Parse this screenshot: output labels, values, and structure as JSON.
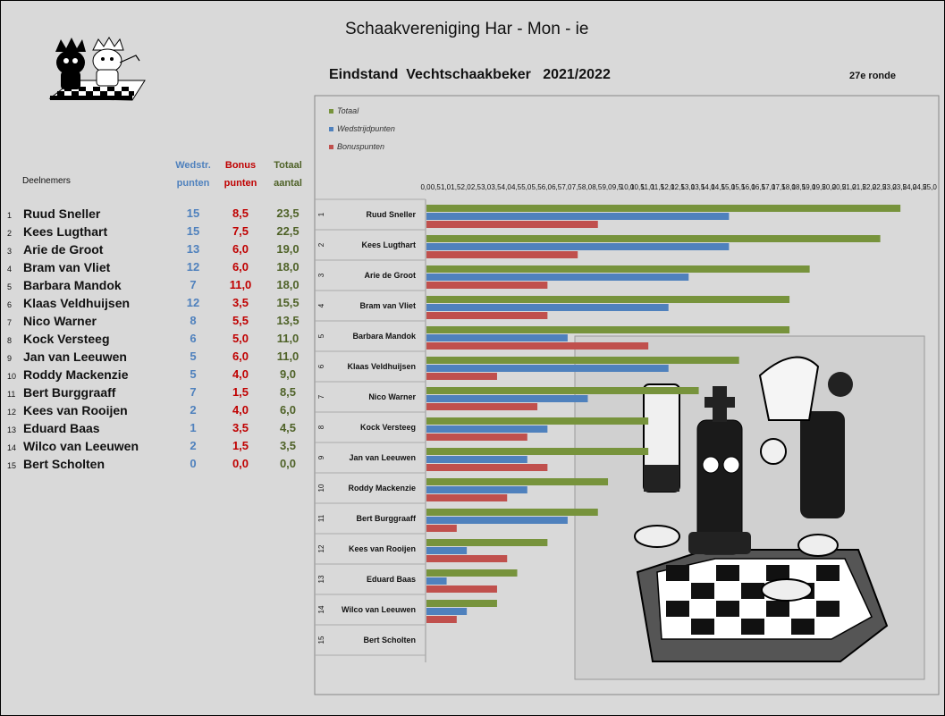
{
  "header": {
    "club_name": "Schaakvereniging Har - Mon - ie",
    "chart_title": "Eindstand  Vechtschaakbeker   2021/2022",
    "round": "27e ronde"
  },
  "table": {
    "participants_label": "Deelnemers",
    "col_wedstr": [
      "Wedstr.",
      "punten"
    ],
    "col_bonus": [
      "Bonus",
      "punten"
    ],
    "col_totaal": [
      "Totaal",
      "aantal"
    ],
    "rows": [
      {
        "rank": "1",
        "name": "Ruud Sneller",
        "wedstr": "15",
        "bonus": "8,5",
        "totaal": "23,5"
      },
      {
        "rank": "2",
        "name": "Kees Lugthart",
        "wedstr": "15",
        "bonus": "7,5",
        "totaal": "22,5"
      },
      {
        "rank": "3",
        "name": "Arie de Groot",
        "wedstr": "13",
        "bonus": "6,0",
        "totaal": "19,0"
      },
      {
        "rank": "4",
        "name": "Bram van Vliet",
        "wedstr": "12",
        "bonus": "6,0",
        "totaal": "18,0"
      },
      {
        "rank": "5",
        "name": "Barbara Mandok",
        "wedstr": "7",
        "bonus": "11,0",
        "totaal": "18,0"
      },
      {
        "rank": "6",
        "name": "Klaas Veldhuijsen",
        "wedstr": "12",
        "bonus": "3,5",
        "totaal": "15,5"
      },
      {
        "rank": "7",
        "name": "Nico Warner",
        "wedstr": "8",
        "bonus": "5,5",
        "totaal": "13,5"
      },
      {
        "rank": "8",
        "name": "Kock Versteeg",
        "wedstr": "6",
        "bonus": "5,0",
        "totaal": "11,0"
      },
      {
        "rank": "9",
        "name": "Jan van Leeuwen",
        "wedstr": "5",
        "bonus": "6,0",
        "totaal": "11,0"
      },
      {
        "rank": "10",
        "name": "Roddy Mackenzie",
        "wedstr": "5",
        "bonus": "4,0",
        "totaal": "9,0"
      },
      {
        "rank": "11",
        "name": "Bert Burggraaff",
        "wedstr": "7",
        "bonus": "1,5",
        "totaal": "8,5"
      },
      {
        "rank": "12",
        "name": "Kees van Rooijen",
        "wedstr": "2",
        "bonus": "4,0",
        "totaal": "6,0"
      },
      {
        "rank": "13",
        "name": "Eduard Baas",
        "wedstr": "1",
        "bonus": "3,5",
        "totaal": "4,5"
      },
      {
        "rank": "14",
        "name": "Wilco van Leeuwen",
        "wedstr": "2",
        "bonus": "1,5",
        "totaal": "3,5"
      },
      {
        "rank": "15",
        "name": "Bert Scholten",
        "wedstr": "0",
        "bonus": "0,0",
        "totaal": "0,0"
      }
    ]
  },
  "colors": {
    "totaal": "#77933c",
    "wedstrijd": "#4f81bd",
    "bonus": "#c0504d",
    "background": "#d9d9d9"
  },
  "chart_data": {
    "type": "bar",
    "orientation": "horizontal",
    "title": "Eindstand  Vechtschaakbeker   2021/2022",
    "legend_position": "top-left",
    "xlim": [
      0,
      25
    ],
    "x_tick_step": 0.5,
    "x_tick_labels": [
      "0,0",
      "0,5",
      "1,0",
      "1,5",
      "2,0",
      "2,5",
      "3,0",
      "3,5",
      "4,0",
      "4,5",
      "5,0",
      "5,5",
      "6,0",
      "6,5",
      "7,0",
      "7,5",
      "8,0",
      "8,5",
      "9,0",
      "9,5",
      "10,0",
      "10,5",
      "11,0",
      "11,5",
      "12,0",
      "12,5",
      "13,0",
      "13,5",
      "14,0",
      "14,5",
      "15,0",
      "15,5",
      "16,0",
      "16,5",
      "17,0",
      "17,5",
      "18,0",
      "18,5",
      "19,0",
      "19,5",
      "20,0",
      "20,5",
      "21,0",
      "21,5",
      "22,0",
      "22,5",
      "23,0",
      "23,5",
      "24,0",
      "24,5",
      "25,0"
    ],
    "category_numbers": [
      "1",
      "2",
      "3",
      "4",
      "5",
      "6",
      "7",
      "8",
      "9",
      "10",
      "11",
      "12",
      "13",
      "14",
      "15"
    ],
    "categories": [
      "Ruud Sneller",
      "Kees Lugthart",
      "Arie de Groot",
      "Bram van Vliet",
      "Barbara Mandok",
      "Klaas Veldhuijsen",
      "Nico Warner",
      "Kock Versteeg",
      "Jan van Leeuwen",
      "Roddy Mackenzie",
      "Bert Burggraaff",
      "Kees van Rooijen",
      "Eduard Baas",
      "Wilco van Leeuwen",
      "Bert Scholten"
    ],
    "series": [
      {
        "name": "Totaal",
        "color": "#77933c",
        "values": [
          23.5,
          22.5,
          19.0,
          18.0,
          18.0,
          15.5,
          13.5,
          11.0,
          11.0,
          9.0,
          8.5,
          6.0,
          4.5,
          3.5,
          0
        ]
      },
      {
        "name": "Wedstrijdpunten",
        "color": "#4f81bd",
        "values": [
          15,
          15,
          13,
          12,
          7,
          12,
          8,
          6,
          5,
          5,
          7,
          2,
          1,
          2,
          0
        ]
      },
      {
        "name": "Bonuspunten",
        "color": "#c0504d",
        "values": [
          8.5,
          7.5,
          6.0,
          6.0,
          11.0,
          3.5,
          5.5,
          5.0,
          6.0,
          4.0,
          1.5,
          4.0,
          3.5,
          1.5,
          0
        ]
      }
    ]
  }
}
